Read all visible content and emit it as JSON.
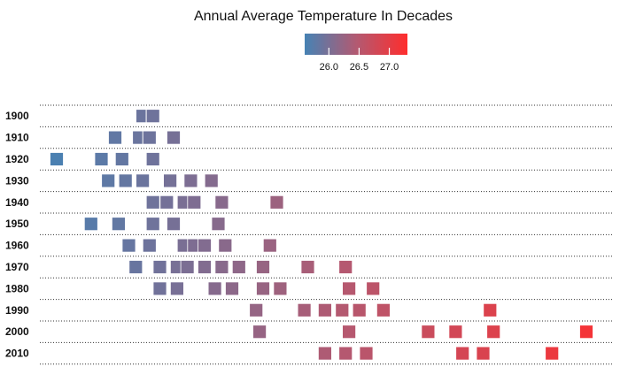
{
  "chart_data": {
    "type": "scatter",
    "title": "Annual Average Temperature In Decades",
    "xlabel": "",
    "ylabel": "",
    "decades": [
      "1900",
      "1910",
      "1920",
      "1930",
      "1940",
      "1950",
      "1960",
      "1970",
      "1980",
      "1990",
      "2000",
      "2010"
    ],
    "series": [
      {
        "decade": "1900",
        "values": [
          25.89,
          25.89,
          25.92,
          25.92,
          25.92,
          25.92
        ]
      },
      {
        "decade": "1910",
        "values": [
          25.81,
          25.88,
          25.88,
          25.91,
          25.91,
          25.91,
          25.91,
          25.98
        ]
      },
      {
        "decade": "1920",
        "values": [
          25.64,
          25.64,
          25.64,
          25.64,
          25.77,
          25.77,
          25.83,
          25.92
        ]
      },
      {
        "decade": "1930",
        "values": [
          25.79,
          25.79,
          25.84,
          25.89,
          25.97,
          25.97,
          26.03,
          26.09
        ]
      },
      {
        "decade": "1940",
        "values": [
          25.92,
          25.96,
          26.01,
          26.04,
          26.12,
          26.28,
          26.28,
          26.28
        ]
      },
      {
        "decade": "1950",
        "values": [
          25.74,
          25.74,
          25.82,
          25.92,
          25.92,
          25.98,
          26.11
        ]
      },
      {
        "decade": "1960",
        "values": [
          25.85,
          25.85,
          25.91,
          25.91,
          26.01,
          26.04,
          26.07,
          26.13,
          26.26
        ]
      },
      {
        "decade": "1970",
        "values": [
          25.87,
          25.94,
          25.99,
          26.02,
          26.07,
          26.12,
          26.17,
          26.24,
          26.37,
          26.48
        ]
      },
      {
        "decade": "1980",
        "values": [
          25.94,
          25.99,
          25.99,
          26.1,
          26.15,
          26.24,
          26.29,
          26.29,
          26.49,
          26.56
        ]
      },
      {
        "decade": "1990",
        "values": [
          26.22,
          26.36,
          26.42,
          26.42,
          26.47,
          26.47,
          26.52,
          26.59,
          26.9,
          26.9
        ]
      },
      {
        "decade": "2000",
        "values": [
          26.23,
          26.23,
          26.49,
          26.72,
          26.72,
          26.72,
          26.8,
          26.8,
          26.91,
          27.18
        ]
      },
      {
        "decade": "2010",
        "values": [
          26.42,
          26.48,
          26.54,
          26.82,
          26.88,
          27.08
        ]
      }
    ],
    "xlim": [
      25.5,
      27.25
    ],
    "colorbar": {
      "min": 25.6,
      "max": 27.3,
      "ticks": [
        "26.0",
        "26.5",
        "27.0"
      ],
      "tick_values": [
        26.0,
        26.5,
        27.0
      ],
      "colors": [
        "#4682b4",
        "#b25a72",
        "#ff2d2d"
      ],
      "placement": "top-center"
    },
    "grid": "dotted horizontal lines between decades",
    "legend": "colorbar"
  }
}
